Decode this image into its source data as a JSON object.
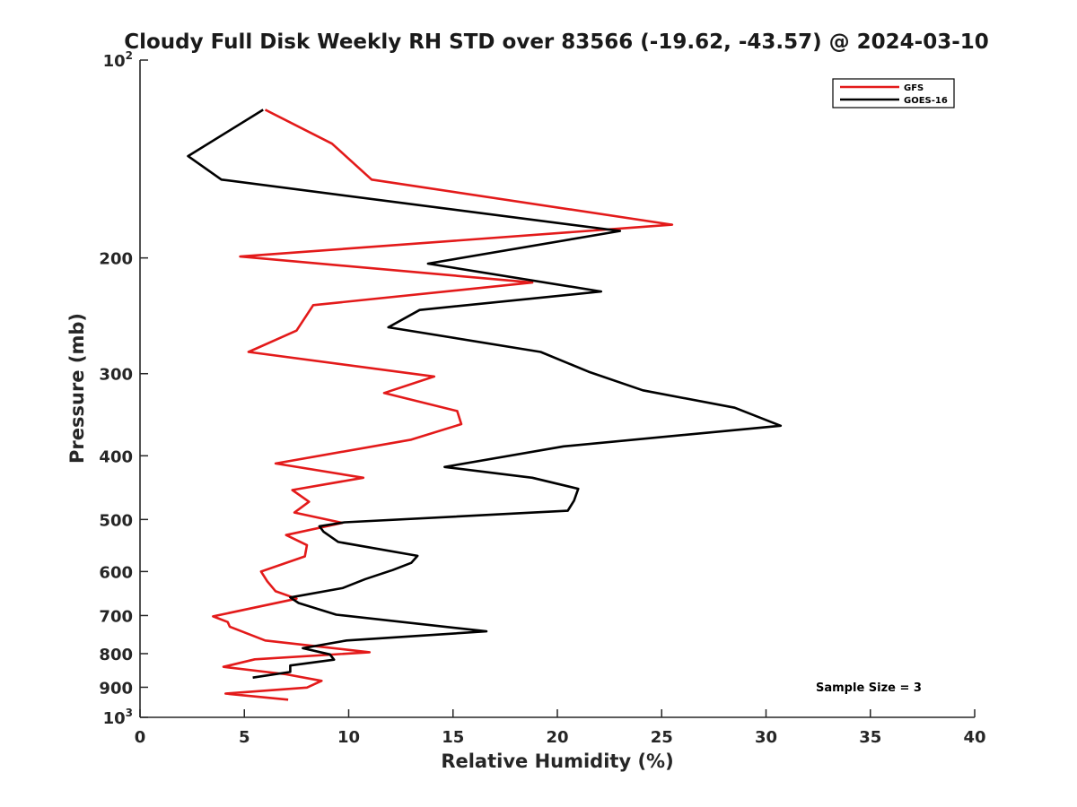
{
  "chart_data": {
    "type": "line",
    "title": "Cloudy Full Disk Weekly RH STD over 83566 (-19.62, -43.57) @ 2024-03-10",
    "xlabel": "Relative Humidity (%)",
    "ylabel": "Pressure (mb)",
    "xlim": [
      0,
      40
    ],
    "ylim": [
      100,
      1000
    ],
    "y_scale": "log",
    "y_reversed": true,
    "grid": false,
    "legend_position": "top-right",
    "x_ticks": [
      0,
      5,
      10,
      15,
      20,
      25,
      30,
      35,
      40
    ],
    "y_ticks": [
      {
        "value": 100,
        "label": "10",
        "exp": "2"
      },
      {
        "value": 200,
        "label": "200",
        "exp": ""
      },
      {
        "value": 300,
        "label": "300",
        "exp": ""
      },
      {
        "value": 400,
        "label": "400",
        "exp": ""
      },
      {
        "value": 500,
        "label": "500",
        "exp": ""
      },
      {
        "value": 600,
        "label": "600",
        "exp": ""
      },
      {
        "value": 700,
        "label": "700",
        "exp": ""
      },
      {
        "value": 800,
        "label": "800",
        "exp": ""
      },
      {
        "value": 900,
        "label": "900",
        "exp": ""
      },
      {
        "value": 1000,
        "label": "10",
        "exp": "3"
      }
    ],
    "annotation": "Sample Size = 3",
    "series": [
      {
        "name": "GFS",
        "color": "#e31a1a",
        "points": [
          [
            6.0,
            119
          ],
          [
            9.2,
            134
          ],
          [
            11.1,
            152
          ],
          [
            25.5,
            178
          ],
          [
            4.8,
            199
          ],
          [
            18.8,
            218
          ],
          [
            8.3,
            236
          ],
          [
            7.5,
            258
          ],
          [
            5.2,
            278
          ],
          [
            14.1,
            303
          ],
          [
            11.7,
            321
          ],
          [
            15.2,
            342
          ],
          [
            15.4,
            358
          ],
          [
            13.0,
            378
          ],
          [
            6.5,
            411
          ],
          [
            10.7,
            432
          ],
          [
            7.3,
            451
          ],
          [
            8.1,
            470
          ],
          [
            7.4,
            488
          ],
          [
            9.7,
            506
          ],
          [
            7.0,
            528
          ],
          [
            8.0,
            547
          ],
          [
            7.9,
            569
          ],
          [
            5.8,
            600
          ],
          [
            6.1,
            621
          ],
          [
            6.5,
            643
          ],
          [
            7.5,
            660
          ],
          [
            3.5,
            702
          ],
          [
            4.2,
            716
          ],
          [
            4.3,
            728
          ],
          [
            6.0,
            764
          ],
          [
            11.0,
            796
          ],
          [
            5.5,
            816
          ],
          [
            4.0,
            838
          ],
          [
            7.0,
            860
          ],
          [
            8.7,
            880
          ],
          [
            8.0,
            901
          ],
          [
            4.1,
            920
          ],
          [
            7.1,
            940
          ]
        ]
      },
      {
        "name": "GOES-16",
        "color": "#000000",
        "points": [
          [
            5.9,
            119
          ],
          [
            2.3,
            140
          ],
          [
            3.9,
            152
          ],
          [
            23.0,
            182
          ],
          [
            13.8,
            204
          ],
          [
            22.1,
            225
          ],
          [
            13.4,
            240
          ],
          [
            11.9,
            255
          ],
          [
            19.2,
            278
          ],
          [
            21.5,
            298
          ],
          [
            24.1,
            318
          ],
          [
            28.5,
            338
          ],
          [
            30.7,
            360
          ],
          [
            20.3,
            387
          ],
          [
            14.6,
            416
          ],
          [
            18.8,
            432
          ],
          [
            21.0,
            449
          ],
          [
            20.8,
            468
          ],
          [
            20.5,
            485
          ],
          [
            9.8,
            505
          ],
          [
            8.6,
            512
          ],
          [
            8.8,
            522
          ],
          [
            9.5,
            541
          ],
          [
            13.3,
            568
          ],
          [
            13.0,
            582
          ],
          [
            12.1,
            597
          ],
          [
            10.8,
            616
          ],
          [
            9.7,
            636
          ],
          [
            7.2,
            657
          ],
          [
            7.6,
            670
          ],
          [
            9.4,
            698
          ],
          [
            16.6,
            740
          ],
          [
            9.9,
            764
          ],
          [
            7.8,
            785
          ],
          [
            9.1,
            802
          ],
          [
            9.3,
            817
          ],
          [
            7.2,
            834
          ],
          [
            7.2,
            853
          ],
          [
            5.4,
            870
          ]
        ]
      }
    ]
  }
}
